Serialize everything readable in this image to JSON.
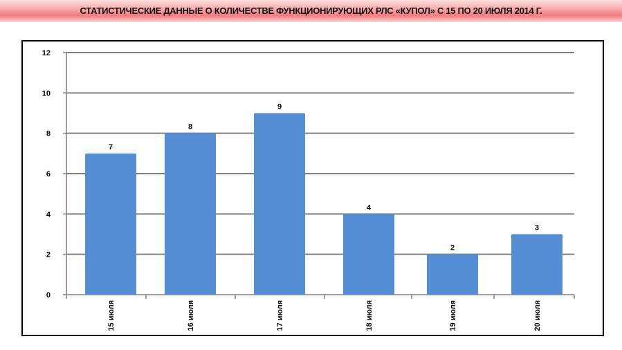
{
  "page": {
    "title": "СТАТИСТИЧЕСКИЕ ДАННЫЕ О КОЛИЧЕСТВЕ ФУНКЦИОНИРУЮЩИХ РЛС «КУПОЛ» С 15 ПО 20 ИЮЛЯ 2014 Г."
  },
  "colors": {
    "bar": "#558ed5",
    "grid": "#7f7f7f",
    "title_band": "#f17b7f"
  },
  "chart_data": {
    "type": "bar",
    "categories": [
      "15 июля",
      "16 июля",
      "17 июля",
      "18 июля",
      "19 июля",
      "20 июля"
    ],
    "values": [
      7,
      8,
      9,
      4,
      2,
      3
    ],
    "data_labels": [
      "7",
      "8",
      "9",
      "4",
      "2",
      "3"
    ],
    "title": "",
    "xlabel": "",
    "ylabel": "",
    "ylim": [
      0,
      12
    ],
    "yticks": [
      0,
      2,
      4,
      6,
      8,
      10,
      12
    ],
    "grid": true,
    "legend": "none"
  }
}
